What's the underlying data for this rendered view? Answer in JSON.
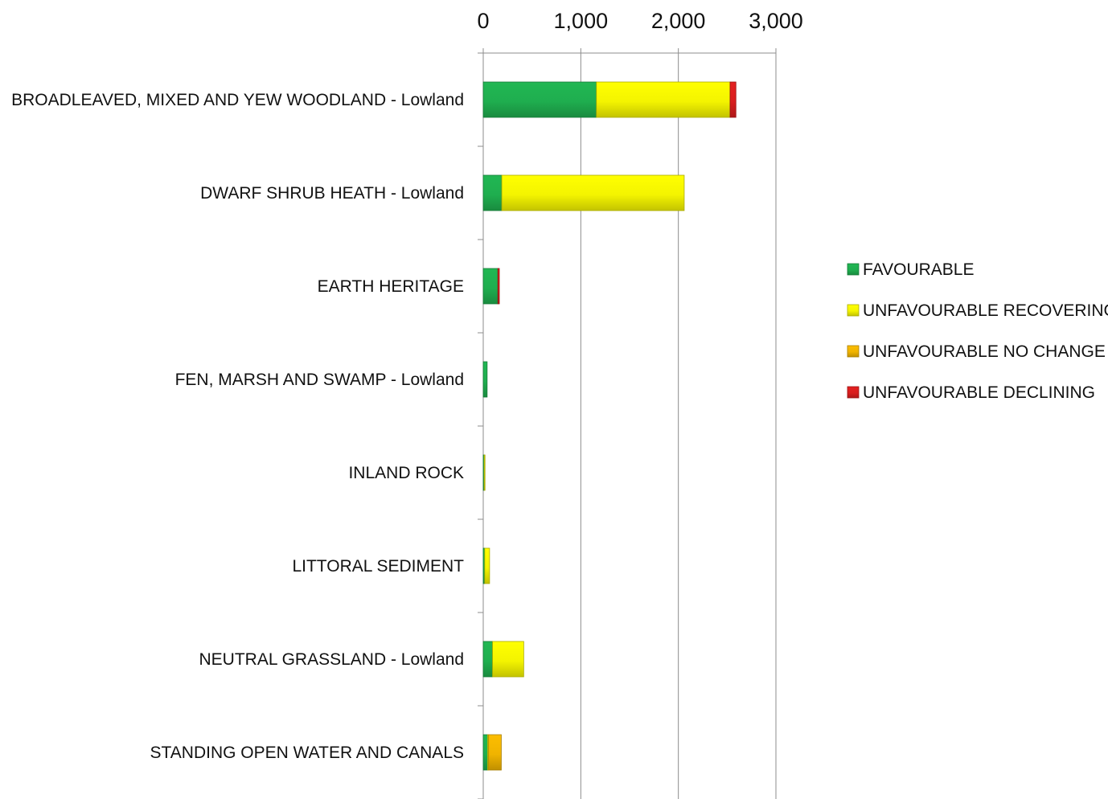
{
  "chart_data": {
    "type": "bar",
    "orientation": "horizontal",
    "stacked": true,
    "title": "",
    "xlabel": "",
    "ylabel": "",
    "xlim": [
      0,
      3000
    ],
    "x_ticks": [
      0,
      1000,
      2000,
      3000
    ],
    "x_tick_labels": [
      "0",
      "1,000",
      "2,000",
      "3,000"
    ],
    "x_axis_position": "top",
    "grid": "vertical",
    "legend_position": "right",
    "categories": [
      "BROADLEAVED, MIXED AND YEW WOODLAND - Lowland",
      "DWARF SHRUB HEATH - Lowland",
      "EARTH HERITAGE",
      "FEN, MARSH AND SWAMP - Lowland",
      "INLAND ROCK",
      "LITTORAL SEDIMENT",
      "NEUTRAL GRASSLAND - Lowland",
      "STANDING OPEN WATER AND CANALS"
    ],
    "series": [
      {
        "name": "FAVOURABLE",
        "color": "#1fae4f",
        "values": [
          1160,
          190,
          150,
          40,
          10,
          15,
          95,
          45
        ]
      },
      {
        "name": "UNFAVOURABLE RECOVERING",
        "color": "#f4f400",
        "values": [
          1370,
          1870,
          0,
          0,
          8,
          50,
          320,
          10
        ]
      },
      {
        "name": "UNFAVOURABLE NO CHANGE",
        "color": "#f0b400",
        "values": [
          0,
          0,
          0,
          0,
          0,
          0,
          0,
          130
        ]
      },
      {
        "name": "UNFAVOURABLE DECLINING",
        "color": "#d91e1e",
        "values": [
          60,
          0,
          15,
          0,
          0,
          0,
          0,
          0
        ]
      }
    ]
  }
}
